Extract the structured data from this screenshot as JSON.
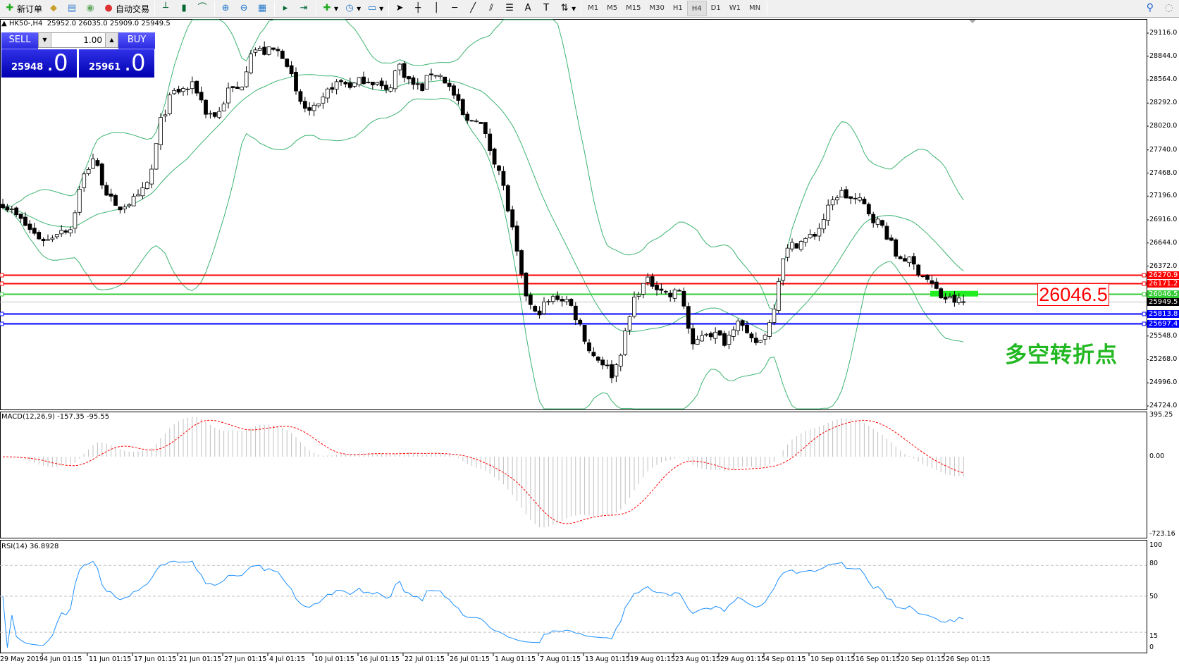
{
  "toolbar": {
    "new_order": "新订单",
    "auto_trading": "自动交易",
    "timeframes": [
      "M1",
      "M5",
      "M15",
      "M30",
      "H1",
      "H4",
      "D1",
      "W1",
      "MN"
    ],
    "active_timeframe": "H4"
  },
  "chart_header": {
    "symbol": "HK50-,H4",
    "open": "25952.0",
    "high": "26035.0",
    "low": "25909.0",
    "close": "25949.5"
  },
  "one_click": {
    "sell_label": "SELL",
    "buy_label": "BUY",
    "lot": "1.00",
    "sell_price_small": "25948",
    "sell_price_big": ".0",
    "buy_price_small": "25961",
    "buy_price_big": ".0"
  },
  "price_axis": [
    "29116.0",
    "28844.0",
    "28564.0",
    "28292.0",
    "28020.0",
    "27740.0",
    "27468.0",
    "27196.0",
    "26916.0",
    "26644.0",
    "26372.0",
    "25548.0",
    "25268.0",
    "24996.0",
    "24724.0"
  ],
  "levels": [
    {
      "value": "26270.9",
      "color": "#ff0000"
    },
    {
      "value": "26171.2",
      "color": "#ff0000"
    },
    {
      "value": "26046.5",
      "color": "#33cc33"
    },
    {
      "value": "25949.5",
      "color": "#000000"
    },
    {
      "value": "25813.8",
      "color": "#0000ff"
    },
    {
      "value": "25697.4",
      "color": "#0000ff"
    }
  ],
  "annotation": {
    "price_tag": "26046.5",
    "note": "多空转折点",
    "note_color": "#22b822"
  },
  "macd": {
    "title": "MACD(12,26,9) -157.35 -95.55",
    "axis": [
      "395.25",
      "0.00",
      "-723.16"
    ],
    "max": 395.25,
    "min": -723.16
  },
  "rsi": {
    "title": "RSI(14) 36.8928",
    "axis": [
      "100",
      "80",
      "50",
      "15",
      "0"
    ],
    "levels": [
      80,
      50,
      15
    ]
  },
  "time_axis": [
    "29 May 2019",
    "4 Jun 01:15",
    "11 Jun 01:15",
    "17 Jun 01:15",
    "21 Jun 01:15",
    "27 Jun 01:15",
    "4 Jul 01:15",
    "10 Jul 01:15",
    "16 Jul 01:15",
    "22 Jul 01:15",
    "26 Jul 01:15",
    "1 Aug 01:15",
    "7 Aug 01:15",
    "13 Aug 01:15",
    "19 Aug 01:15",
    "23 Aug 01:15",
    "29 Aug 01:15",
    "4 Sep 01:15",
    "10 Sep 01:15",
    "16 Sep 01:15",
    "20 Sep 01:15",
    "26 Sep 01:15"
  ],
  "chart_data": {
    "type": "candlestick",
    "symbol": "HK50-",
    "timeframe": "H4",
    "ylim": [
      24724,
      29116
    ],
    "close_samples": [
      27120,
      26987,
      26853,
      26720,
      26676,
      26810,
      26810,
      27386,
      27652,
      27297,
      27031,
      27120,
      27164,
      27386,
      28096,
      28406,
      28451,
      28495,
      28184,
      28140,
      28451,
      28451,
      28939,
      28894,
      28912,
      28850,
      28362,
      28184,
      28229,
      28495,
      28539,
      28495,
      28584,
      28539,
      28406,
      28761,
      28539,
      28451,
      28672,
      28584,
      28362,
      28051,
      28140,
      27785,
      27474,
      26853,
      26143,
      25789,
      25922,
      26011,
      25966,
      25700,
      25345,
      25256,
      25079,
      25522,
      26055,
      26188,
      26143,
      26011,
      26099,
      25389,
      25611,
      25567,
      25478,
      25789,
      25478,
      25478,
      25744,
      26498,
      26632,
      26676,
      26765,
      27031,
      27253,
      27164,
      27120,
      26942,
      26810,
      26498,
      26454,
      26321,
      26188,
      26011,
      25966,
      25949.5
    ],
    "indicators": {
      "bollinger": {
        "period": 20,
        "deviation": 2,
        "color": "#3cb371"
      },
      "macd": {
        "fast": 12,
        "slow": 26,
        "signal": 9,
        "signal_color": "#ff0000",
        "hist_color": "#c0c0c0"
      },
      "rsi": {
        "period": 14,
        "color": "#1e90ff"
      }
    }
  }
}
